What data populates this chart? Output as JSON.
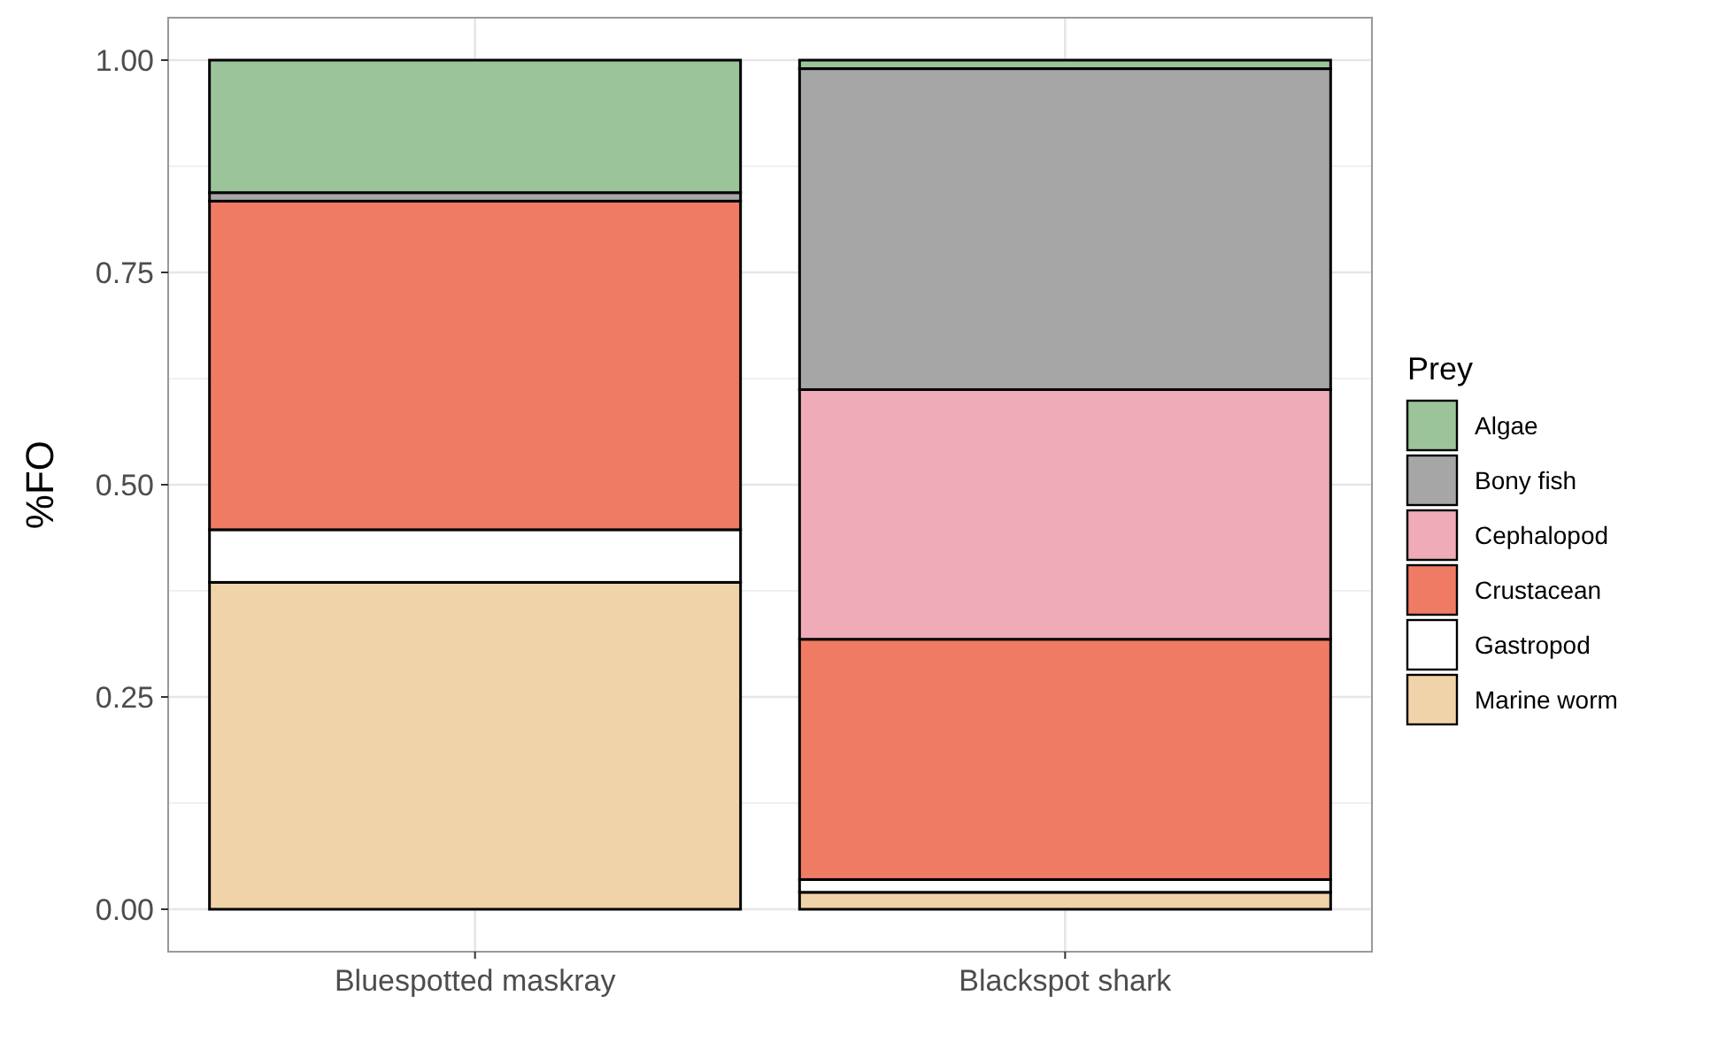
{
  "chart_data": {
    "type": "bar",
    "stacked": true,
    "ylabel": "%FO",
    "legend_title": "Prey",
    "legend": "right",
    "grid": true,
    "categories": [
      "Bluespotted maskray",
      "Blackspot shark"
    ],
    "series": [
      {
        "name": "Marine worm",
        "color": "#f0d3a8",
        "values": [
          0.385,
          0.02
        ]
      },
      {
        "name": "Gastropod",
        "color": "#ffffff",
        "values": [
          0.062,
          0.015
        ]
      },
      {
        "name": "Crustacean",
        "color": "#f07b65",
        "values": [
          0.387,
          0.283
        ]
      },
      {
        "name": "Cephalopod",
        "color": "#efabb8",
        "values": [
          0,
          0.294
        ]
      },
      {
        "name": "Bony fish",
        "color": "#a6a6a6",
        "values": [
          0.01,
          0.378
        ]
      },
      {
        "name": "Algae",
        "color": "#9bc49b",
        "values": [
          0.156,
          0.01
        ]
      }
    ],
    "ylim": [
      -0.05,
      1.05
    ],
    "yticks": [
      {
        "value": 0,
        "label": "0.00"
      },
      {
        "value": 0.25,
        "label": "0.25"
      },
      {
        "value": 0.5,
        "label": "0.50"
      },
      {
        "value": 0.75,
        "label": "0.75"
      },
      {
        "value": 1,
        "label": "1.00"
      }
    ]
  }
}
